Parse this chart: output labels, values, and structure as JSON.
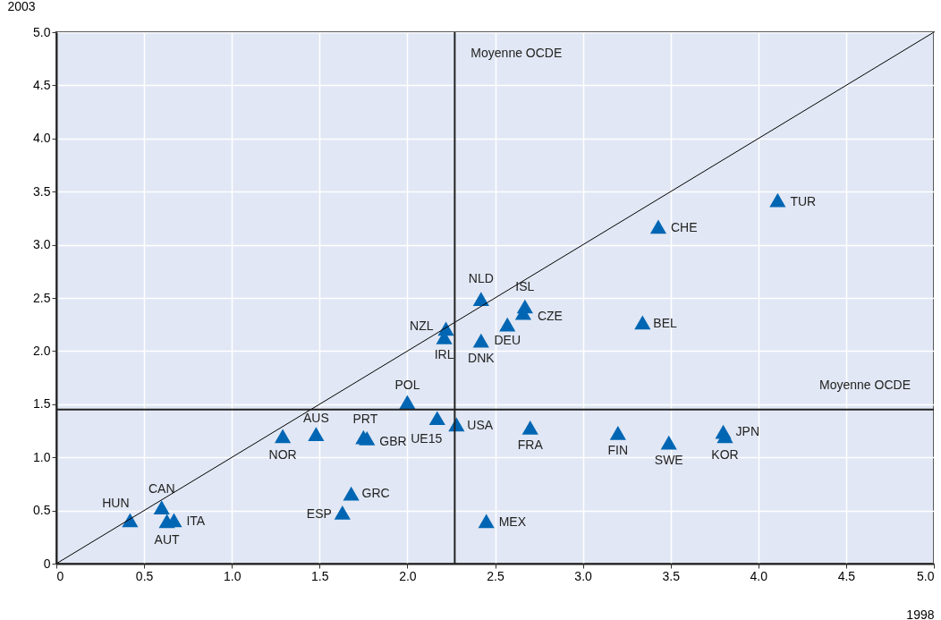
{
  "chart_data": {
    "type": "scatter",
    "xlabel": "1998",
    "ylabel": "2003",
    "xlim": [
      0,
      5
    ],
    "ylim": [
      0,
      5
    ],
    "xticks": [
      0,
      0.5,
      {
        "value": 1,
        "label": "1.0"
      },
      1.5,
      {
        "value": 2,
        "label": "2.0"
      },
      2.5,
      {
        "value": 3,
        "label": "3.0"
      },
      3.5,
      {
        "value": 4,
        "label": "4.0"
      },
      4.5,
      {
        "value": 5,
        "label": "5.0"
      }
    ],
    "yticks": [
      0,
      0.5,
      {
        "value": 1,
        "label": "1.0"
      },
      1.5,
      {
        "value": 2,
        "label": "2.0"
      },
      2.5,
      {
        "value": 3,
        "label": "3.0"
      },
      3.5,
      {
        "value": 4,
        "label": "4.0"
      },
      4.5,
      {
        "value": 5,
        "label": "5.0"
      }
    ],
    "grid": true,
    "series": [
      {
        "color": "#0066b3",
        "marker": "triangle",
        "x": [
          0.42,
          0.6,
          0.63,
          0.67,
          1.29,
          1.48,
          1.75,
          1.77,
          1.68,
          1.63,
          2.0,
          2.17,
          2.28,
          2.45,
          2.22,
          2.21,
          2.42,
          2.42,
          2.57,
          2.67,
          2.66,
          2.7,
          3.2,
          3.49,
          3.8,
          3.81,
          3.34,
          3.43,
          4.11
        ],
        "values": [
          0.41,
          0.53,
          0.4,
          0.41,
          1.2,
          1.22,
          1.19,
          1.18,
          0.66,
          0.48,
          1.52,
          1.37,
          1.31,
          0.4,
          2.21,
          2.13,
          2.49,
          2.1,
          2.25,
          2.42,
          2.36,
          1.28,
          1.23,
          1.14,
          1.24,
          1.2,
          2.27,
          3.17,
          3.42
        ],
        "value_labels": [
          "HUN",
          "CAN",
          "AUT",
          "ITA",
          "NOR",
          "AUS",
          "PRT",
          "GBR",
          "GRC",
          "ESP",
          "POL",
          "UE15",
          "USA",
          "MEX",
          "NZL",
          "IRL",
          "NLD",
          "DNK",
          "DEU",
          "ISL",
          "CZE",
          "FRA",
          "FIN",
          "SWE",
          "JPN",
          "KOR",
          "BEL",
          "CHE",
          "TUR"
        ]
      },
      {
        "type": "line",
        "color": "#000000",
        "line_style": "solid",
        "x": [
          0,
          5
        ],
        "values": [
          0,
          5
        ]
      }
    ],
    "ref_lines": [
      {
        "axis": "x",
        "value": 2.27,
        "label": "Moyenne OCDE",
        "color": "#222222"
      },
      {
        "axis": "y",
        "value": 1.45,
        "label": "Moyenne OCDE",
        "color": "#222222"
      }
    ]
  }
}
